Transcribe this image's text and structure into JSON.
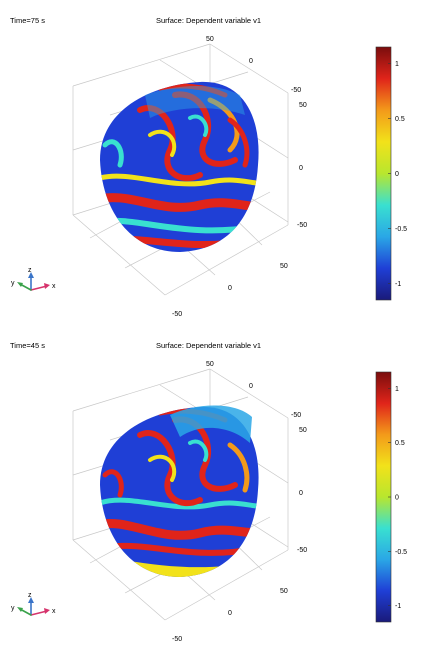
{
  "chart_data": [
    {
      "type": "heatmap",
      "time_label": "Time=75 s",
      "title": "Surface: Dependent variable v1",
      "axis_ticks": {
        "z": [
          "50",
          "0",
          "-50"
        ],
        "y": [
          "50",
          "0",
          "-50"
        ],
        "x": [
          "-50",
          "0",
          "50"
        ]
      },
      "colorbar": {
        "ticks": [
          "1",
          "0.5",
          "0",
          "-0.5",
          "-1"
        ],
        "tick_values": [
          1,
          0.5,
          0,
          -0.5,
          -1
        ],
        "range": [
          -1.15,
          1.15
        ],
        "colormap": "rainbow (dark blue → cyan → green → yellow → red → dark red)"
      },
      "triad_labels": {
        "x": "x",
        "y": "y",
        "z": "z"
      },
      "surface_variant": "late"
    },
    {
      "type": "heatmap",
      "time_label": "Time=45 s",
      "title": "Surface: Dependent variable v1",
      "axis_ticks": {
        "z": [
          "50",
          "0",
          "-50"
        ],
        "y": [
          "50",
          "0",
          "-50"
        ],
        "x": [
          "-50",
          "0",
          "50"
        ]
      },
      "colorbar": {
        "ticks": [
          "1",
          "0.5",
          "0",
          "-0.5",
          "-1"
        ],
        "tick_values": [
          1,
          0.5,
          0,
          -0.5,
          -1
        ],
        "range": [
          -1.15,
          1.15
        ],
        "colormap": "rainbow (dark blue → cyan → green → yellow → red → dark red)"
      },
      "triad_labels": {
        "x": "x",
        "y": "y",
        "z": "z"
      },
      "surface_variant": "early"
    }
  ],
  "colors": {
    "background": "#ffffff",
    "grid": "#c8c8c8",
    "triad_x": "#d6336c",
    "triad_y": "#3aa24a",
    "triad_z": "#3a74c8",
    "colorbar_stops": [
      "#1a1a7a",
      "#1f3fd6",
      "#2aa7e6",
      "#39e0d0",
      "#b8e62e",
      "#f2e21a",
      "#f39a1a",
      "#e0241a",
      "#7a0d0d"
    ]
  }
}
